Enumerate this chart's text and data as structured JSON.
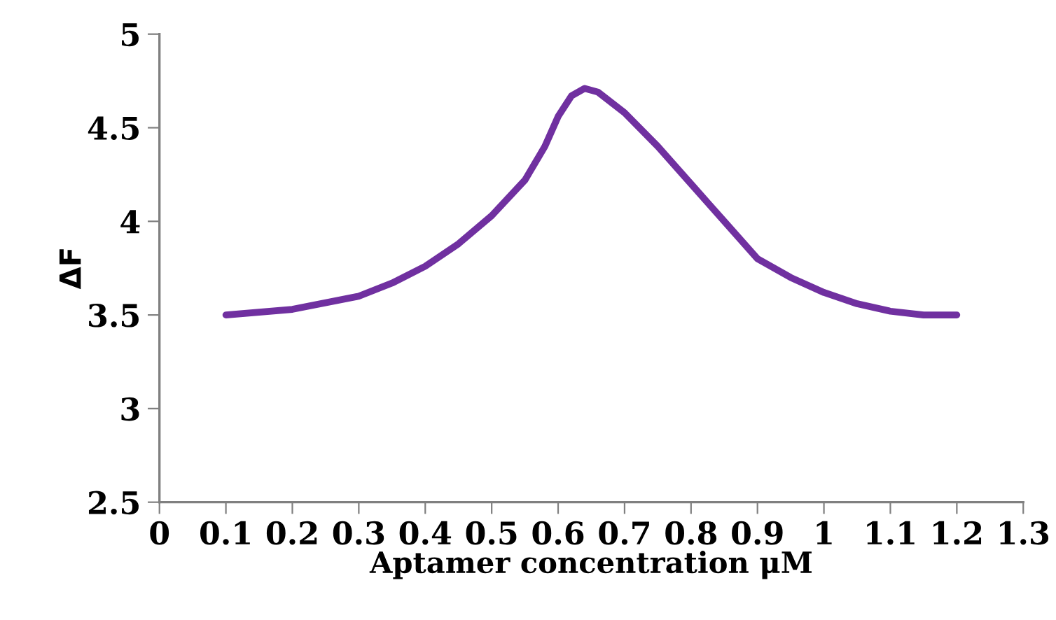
{
  "chart_data": {
    "type": "line",
    "xlabel": "Aptamer concentration μM",
    "ylabel": "ΔF",
    "x": [
      0.1,
      0.2,
      0.3,
      0.35,
      0.4,
      0.45,
      0.5,
      0.55,
      0.58,
      0.6,
      0.62,
      0.64,
      0.66,
      0.7,
      0.75,
      0.8,
      0.85,
      0.9,
      0.95,
      1.0,
      1.05,
      1.1,
      1.15,
      1.2
    ],
    "series": [
      {
        "color": "#7030a0",
        "values": [
          3.5,
          3.53,
          3.6,
          3.67,
          3.76,
          3.88,
          4.03,
          4.22,
          4.4,
          4.56,
          4.67,
          4.71,
          4.69,
          4.58,
          4.4,
          4.2,
          4.0,
          3.8,
          3.7,
          3.62,
          3.56,
          3.52,
          3.5,
          3.5
        ]
      }
    ],
    "xlim": [
      0,
      1.3
    ],
    "xticks": [
      0,
      0.1,
      0.2,
      0.3,
      0.4,
      0.5,
      0.6,
      0.7,
      0.8,
      0.9,
      1,
      1.1,
      1.2,
      1.3
    ],
    "ylim": [
      2.5,
      5
    ],
    "yticks": [
      2.5,
      3,
      3.5,
      4,
      4.5,
      5
    ],
    "grid": false,
    "legend": false,
    "marker": "none",
    "line_style": "solid"
  }
}
